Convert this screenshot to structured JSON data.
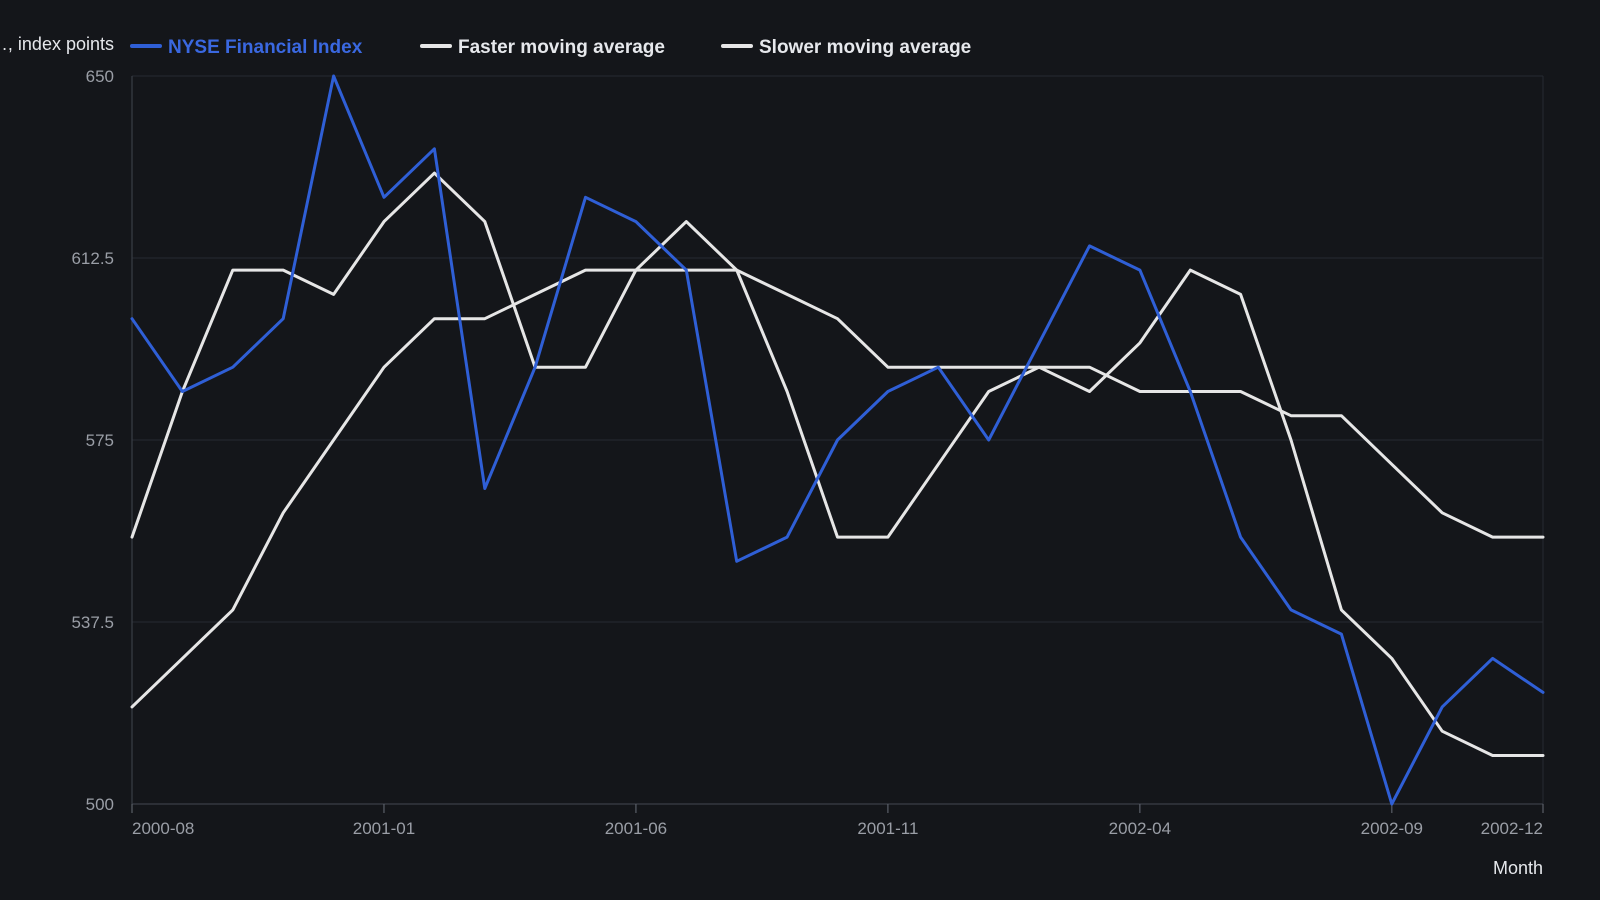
{
  "chart_data": {
    "type": "line",
    "ylabel": "…, index points",
    "xlabel": "Month",
    "ylim": [
      500,
      650
    ],
    "y_ticks": [
      "650",
      "612.5",
      "575",
      "537.5",
      "500"
    ],
    "y_tick_values": [
      650,
      612.5,
      575,
      537.5,
      500
    ],
    "x_ticks": [
      {
        "label": "2000-08",
        "index": 0
      },
      {
        "label": "2001-01",
        "index": 5
      },
      {
        "label": "2001-06",
        "index": 10
      },
      {
        "label": "2001-11",
        "index": 15
      },
      {
        "label": "2002-04",
        "index": 20
      },
      {
        "label": "2002-09",
        "index": 25
      },
      {
        "label": "2002-12",
        "index": 28
      }
    ],
    "categories": [
      "2000-08",
      "2000-09",
      "2000-10",
      "2000-11",
      "2000-12",
      "2001-01",
      "2001-02",
      "2001-03",
      "2001-04",
      "2001-05",
      "2001-06",
      "2001-07",
      "2001-08",
      "2001-09",
      "2001-10",
      "2001-11",
      "2001-12",
      "2002-01",
      "2002-02",
      "2002-03",
      "2002-04",
      "2002-05",
      "2002-06",
      "2002-07",
      "2002-08",
      "2002-09",
      "2002-10",
      "2002-11",
      "2002-12"
    ],
    "grid": true,
    "legend_position": "top-left",
    "series": [
      {
        "name": "NYSE Financial Index",
        "color": "#2f5fd6",
        "values": [
          600,
          585,
          590,
          600,
          650,
          625,
          635,
          565,
          590,
          625,
          620,
          610,
          550,
          555,
          575,
          585,
          590,
          575,
          595,
          615,
          610,
          585,
          555,
          540,
          535,
          500,
          520,
          530,
          523
        ]
      },
      {
        "name": "Faster moving average",
        "color": "#e6e6e6",
        "values": [
          555,
          585,
          610,
          610,
          605,
          620,
          630,
          620,
          590,
          590,
          610,
          620,
          610,
          585,
          555,
          555,
          570,
          585,
          590,
          585,
          595,
          610,
          605,
          575,
          540,
          530,
          515,
          510,
          510
        ]
      },
      {
        "name": "Slower moving average",
        "color": "#e6e6e6",
        "values": [
          520,
          530,
          540,
          560,
          575,
          590,
          600,
          600,
          605,
          610,
          610,
          610,
          610,
          605,
          600,
          590,
          590,
          590,
          590,
          590,
          585,
          585,
          585,
          580,
          580,
          570,
          560,
          555,
          555
        ]
      }
    ]
  }
}
